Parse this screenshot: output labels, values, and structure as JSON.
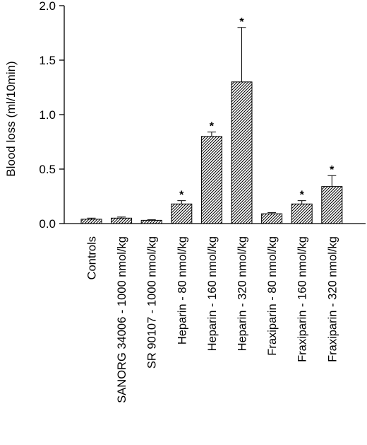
{
  "chart_data": {
    "type": "bar",
    "title": "",
    "xlabel": "",
    "ylabel": "Blood loss (ml/10min)",
    "ylim": [
      0,
      2.0
    ],
    "yticks": [
      "0.0",
      "0.5",
      "1.0",
      "1.5",
      "2.0"
    ],
    "grid": false,
    "legend": "none",
    "bar_fill": "diagonal-hatch",
    "categories": [
      "Controls",
      "SANORG 34006 - 1000 nmol/kg",
      "SR 90107 - 1000 nmol/kg",
      "Heparin - 80 nmol/kg",
      "Heparin - 160 nmol/kg",
      "Heparin - 320 nmol/kg",
      "Fraxiparin - 80 nmol/kg",
      "Fraxiparin - 160 nmol/kg",
      "Fraxiparin - 320 nmol/kg"
    ],
    "values": [
      0.04,
      0.05,
      0.03,
      0.18,
      0.8,
      1.3,
      0.09,
      0.18,
      0.34
    ],
    "errors": [
      0.01,
      0.01,
      0.005,
      0.03,
      0.04,
      0.5,
      0.01,
      0.03,
      0.1
    ],
    "significant": [
      false,
      false,
      false,
      true,
      true,
      true,
      false,
      true,
      true
    ],
    "significance_marker": "*"
  }
}
